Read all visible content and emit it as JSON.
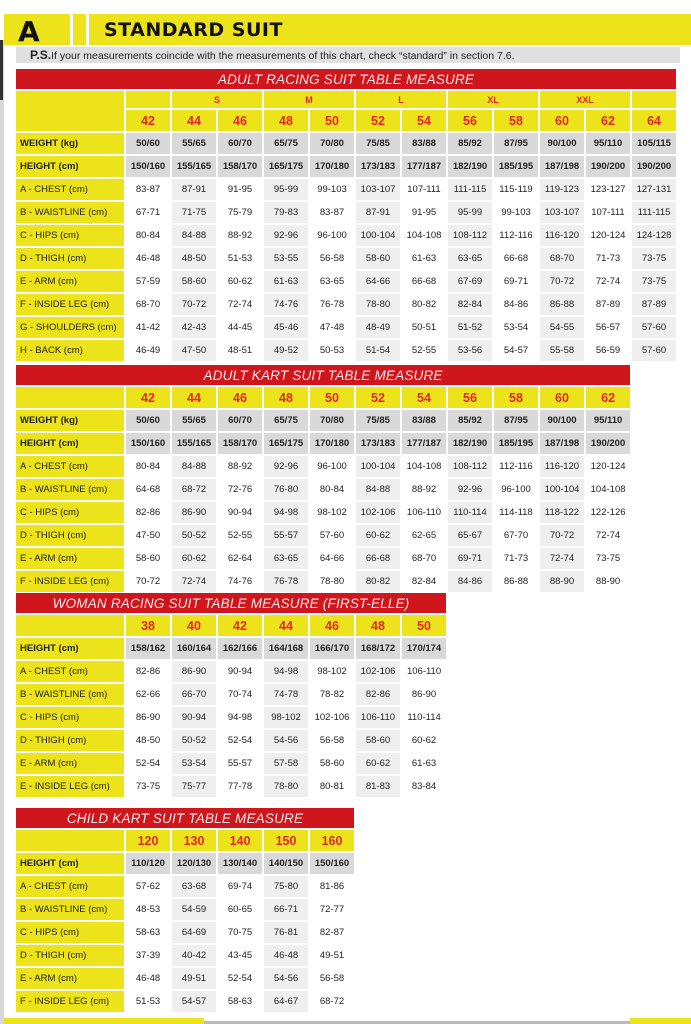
{
  "header": {
    "letter": "A",
    "title": "STANDARD SUIT"
  },
  "note": {
    "prefix": "P.S.",
    "text": "If your measurements coincide with the measurements of this chart, check “standard” in section 7.6."
  },
  "colors": {
    "yellow": "#ede31b",
    "red": "#cf161d",
    "size_text": "#e4262b"
  },
  "tables": [
    {
      "title": "ADULT RACING SUIT TABLE MEASURE",
      "groups": [
        {
          "label": "",
          "span": 1
        },
        {
          "label": "S",
          "span": 2
        },
        {
          "label": "M",
          "span": 2
        },
        {
          "label": "L",
          "span": 2
        },
        {
          "label": "XL",
          "span": 2
        },
        {
          "label": "XXL",
          "span": 2
        },
        {
          "label": "",
          "span": 1
        }
      ],
      "sizes": [
        "42",
        "44",
        "46",
        "48",
        "50",
        "52",
        "54",
        "56",
        "58",
        "60",
        "62",
        "64"
      ],
      "rows": [
        {
          "label": "WEIGHT (kg)",
          "bold": true,
          "values": [
            "50/60",
            "55/65",
            "60/70",
            "65/75",
            "70/80",
            "75/85",
            "83/88",
            "85/92",
            "87/95",
            "90/100",
            "95/110",
            "105/115"
          ]
        },
        {
          "label": "HEIGHT (cm)",
          "bold": true,
          "values": [
            "150/160",
            "155/165",
            "158/170",
            "165/175",
            "170/180",
            "173/183",
            "177/187",
            "182/190",
            "185/195",
            "187/198",
            "190/200",
            "190/200"
          ]
        },
        {
          "label": "A - CHEST (cm)",
          "values": [
            "83-87",
            "87-91",
            "91-95",
            "95-99",
            "99-103",
            "103-107",
            "107-111",
            "111-115",
            "115-119",
            "119-123",
            "123-127",
            "127-131"
          ]
        },
        {
          "label": "B - WAISTLINE (cm)",
          "values": [
            "67-71",
            "71-75",
            "75-79",
            "79-83",
            "83-87",
            "87-91",
            "91-95",
            "95-99",
            "99-103",
            "103-107",
            "107-111",
            "111-115"
          ]
        },
        {
          "label": "C - HIPS (cm)",
          "values": [
            "80-84",
            "84-88",
            "88-92",
            "92-96",
            "96-100",
            "100-104",
            "104-108",
            "108-112",
            "112-116",
            "116-120",
            "120-124",
            "124-128"
          ]
        },
        {
          "label": "D - THIGH (cm)",
          "values": [
            "46-48",
            "48-50",
            "51-53",
            "53-55",
            "56-58",
            "58-60",
            "61-63",
            "63-65",
            "66-68",
            "68-70",
            "71-73",
            "73-75"
          ]
        },
        {
          "label": "E - ARM (cm)",
          "values": [
            "57-59",
            "58-60",
            "60-62",
            "61-63",
            "63-65",
            "64-66",
            "66-68",
            "67-69",
            "69-71",
            "70-72",
            "72-74",
            "73-75"
          ]
        },
        {
          "label": "F - INSIDE LEG (cm)",
          "values": [
            "68-70",
            "70-72",
            "72-74",
            "74-76",
            "76-78",
            "78-80",
            "80-82",
            "82-84",
            "84-86",
            "86-88",
            "87-89",
            "87-89"
          ]
        },
        {
          "label": "G - SHOULDERS (cm)",
          "values": [
            "41-42",
            "42-43",
            "44-45",
            "45-46",
            "47-48",
            "48-49",
            "50-51",
            "51-52",
            "53-54",
            "54-55",
            "56-57",
            "57-60"
          ]
        },
        {
          "label": "H - BACK (cm)",
          "values": [
            "46-49",
            "47-50",
            "48-51",
            "49-52",
            "50-53",
            "51-54",
            "52-55",
            "53-56",
            "54-57",
            "55-58",
            "56-59",
            "57-60"
          ]
        }
      ]
    },
    {
      "title": "ADULT KART SUIT TABLE MEASURE",
      "sizes": [
        "42",
        "44",
        "46",
        "48",
        "50",
        "52",
        "54",
        "56",
        "58",
        "60",
        "62"
      ],
      "rows": [
        {
          "label": "WEIGHT (kg)",
          "bold": true,
          "values": [
            "50/60",
            "55/65",
            "60/70",
            "65/75",
            "70/80",
            "75/85",
            "83/88",
            "85/92",
            "87/95",
            "90/100",
            "95/110"
          ]
        },
        {
          "label": "HEIGHT (cm)",
          "bold": true,
          "values": [
            "150/160",
            "155/165",
            "158/170",
            "165/175",
            "170/180",
            "173/183",
            "177/187",
            "182/190",
            "185/195",
            "187/198",
            "190/200"
          ]
        },
        {
          "label": "A - CHEST (cm)",
          "values": [
            "80-84",
            "84-88",
            "88-92",
            "92-96",
            "96-100",
            "100-104",
            "104-108",
            "108-112",
            "112-116",
            "116-120",
            "120-124"
          ]
        },
        {
          "label": "B - WAISTLINE (cm)",
          "values": [
            "64-68",
            "68-72",
            "72-76",
            "76-80",
            "80-84",
            "84-88",
            "88-92",
            "92-96",
            "96-100",
            "100-104",
            "104-108"
          ]
        },
        {
          "label": "C - HIPS (cm)",
          "values": [
            "82-86",
            "86-90",
            "90-94",
            "94-98",
            "98-102",
            "102-106",
            "106-110",
            "110-114",
            "114-118",
            "118-122",
            "122-126"
          ]
        },
        {
          "label": "D - THIGH (cm)",
          "values": [
            "47-50",
            "50-52",
            "52-55",
            "55-57",
            "57-60",
            "60-62",
            "62-65",
            "65-67",
            "67-70",
            "70-72",
            "72-74"
          ]
        },
        {
          "label": "E - ARM (cm)",
          "values": [
            "58-60",
            "60-62",
            "62-64",
            "63-65",
            "64-66",
            "66-68",
            "68-70",
            "69-71",
            "71-73",
            "72-74",
            "73-75"
          ]
        },
        {
          "label": "F - INSIDE LEG (cm)",
          "values": [
            "70-72",
            "72-74",
            "74-76",
            "76-78",
            "78-80",
            "80-82",
            "82-84",
            "84-86",
            "86-88",
            "88-90",
            "88-90"
          ]
        }
      ]
    },
    {
      "title": "WOMAN RACING SUIT TABLE MEASURE (FIRST-ELLE)",
      "sizes": [
        "38",
        "40",
        "42",
        "44",
        "46",
        "48",
        "50"
      ],
      "rows": [
        {
          "label": "HEIGHT (cm)",
          "bold": true,
          "values": [
            "158/162",
            "160/164",
            "162/166",
            "164/168",
            "166/170",
            "168/172",
            "170/174"
          ]
        },
        {
          "label": "A - CHEST (cm)",
          "values": [
            "82-86",
            "86-90",
            "90-94",
            "94-98",
            "98-102",
            "102-106",
            "106-110"
          ]
        },
        {
          "label": "B - WAISTLINE (cm)",
          "values": [
            "62-66",
            "66-70",
            "70-74",
            "74-78",
            "78-82",
            "82-86",
            "86-90"
          ]
        },
        {
          "label": "C - HIPS (cm)",
          "values": [
            "86-90",
            "90-94",
            "94-98",
            "98-102",
            "102-106",
            "106-110",
            "110-114"
          ]
        },
        {
          "label": "D - THIGH (cm)",
          "values": [
            "48-50",
            "50-52",
            "52-54",
            "54-56",
            "56-58",
            "58-60",
            "60-62"
          ]
        },
        {
          "label": "E - ARM (cm)",
          "values": [
            "52-54",
            "53-54",
            "55-57",
            "57-58",
            "58-60",
            "60-62",
            "61-63"
          ]
        },
        {
          "label": "E - INSIDE LEG (cm)",
          "values": [
            "73-75",
            "75-77",
            "77-78",
            "78-80",
            "80-81",
            "81-83",
            "83-84"
          ]
        }
      ]
    },
    {
      "title": "CHILD KART SUIT TABLE MEASURE",
      "sizes": [
        "120",
        "130",
        "140",
        "150",
        "160"
      ],
      "rows": [
        {
          "label": "HEIGHT (cm)",
          "bold": true,
          "values": [
            "110/120",
            "120/130",
            "130/140",
            "140/150",
            "150/160"
          ]
        },
        {
          "label": "A - CHEST (cm)",
          "values": [
            "57-62",
            "63-68",
            "69-74",
            "75-80",
            "81-86"
          ]
        },
        {
          "label": "B - WAISTLINE (cm)",
          "values": [
            "48-53",
            "54-59",
            "60-65",
            "66-71",
            "72-77"
          ]
        },
        {
          "label": "C - HIPS (cm)",
          "values": [
            "58-63",
            "64-69",
            "70-75",
            "76-81",
            "82-87"
          ]
        },
        {
          "label": "D - THIGH (cm)",
          "values": [
            "37-39",
            "40-42",
            "43-45",
            "46-48",
            "49-51"
          ]
        },
        {
          "label": "E - ARM (cm)",
          "values": [
            "46-48",
            "49-51",
            "52-54",
            "54-56",
            "56-58"
          ]
        },
        {
          "label": "F - INSIDE LEG (cm)",
          "values": [
            "51-53",
            "54-57",
            "58-63",
            "64-67",
            "68-72"
          ]
        }
      ]
    }
  ]
}
